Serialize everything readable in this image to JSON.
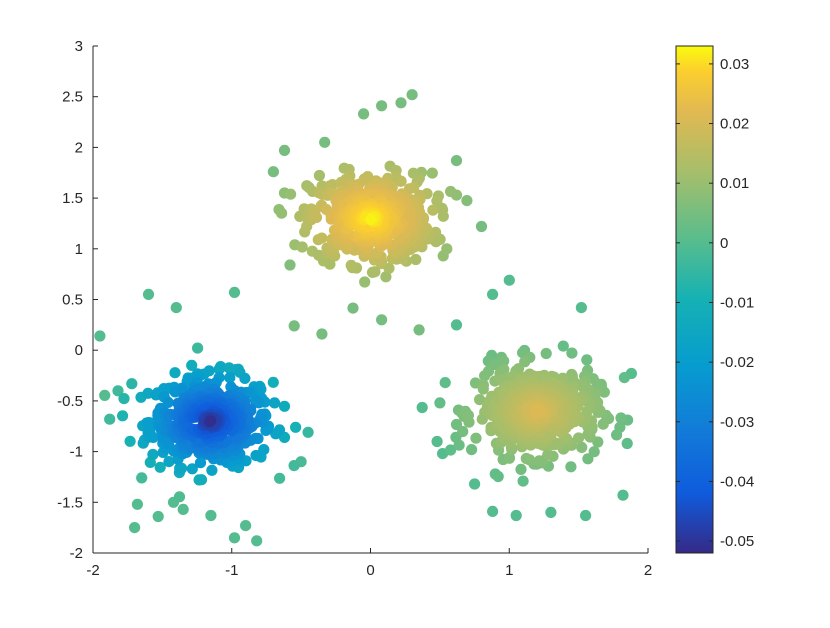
{
  "chart_data": {
    "type": "scatter",
    "title": "",
    "xlabel": "",
    "ylabel": "",
    "xlim": [
      -2,
      2
    ],
    "ylim": [
      -2,
      3
    ],
    "x_ticks": [
      -2,
      -1,
      0,
      1,
      2
    ],
    "x_tick_labels": [
      "-2",
      "-1",
      "0",
      "1",
      "2"
    ],
    "y_ticks": [
      -2,
      -1.5,
      -1,
      -0.5,
      0,
      0.5,
      1,
      1.5,
      2,
      2.5,
      3
    ],
    "y_tick_labels": [
      "-2",
      "-1.5",
      "-1",
      "-0.5",
      "0",
      "0.5",
      "1",
      "1.5",
      "2",
      "2.5",
      "3"
    ],
    "grid": false,
    "colorbar": {
      "colormap": "parula",
      "range": [
        -0.052,
        0.033
      ],
      "ticks": [
        -0.05,
        -0.04,
        -0.03,
        -0.02,
        -0.01,
        0,
        0.01,
        0.02,
        0.03
      ],
      "tick_labels": [
        "-0.05",
        "-0.04",
        "-0.03",
        "-0.02",
        "-0.01",
        "0",
        "0.01",
        "0.02",
        "0.03"
      ]
    },
    "clusters": [
      {
        "center": [
          -1.15,
          -0.7
        ],
        "spread": 0.22,
        "approx_points": 500,
        "color_value_range": [
          -0.052,
          0.0
        ],
        "points": [
          [
            -1.6,
            0.55
          ],
          [
            -1.4,
            0.42
          ],
          [
            -1.95,
            0.14
          ],
          [
            -0.98,
            0.57
          ],
          [
            -1.82,
            -0.4
          ],
          [
            -1.88,
            -0.68
          ],
          [
            -1.72,
            -0.33
          ],
          [
            -0.45,
            -0.81
          ],
          [
            -0.5,
            -1.1
          ],
          [
            -0.62,
            -0.86
          ],
          [
            -1.42,
            -1.5
          ],
          [
            -1.68,
            -1.52
          ],
          [
            -1.7,
            -1.75
          ],
          [
            -1.53,
            -1.64
          ],
          [
            -0.98,
            -1.85
          ],
          [
            -0.82,
            -1.88
          ],
          [
            -1.15,
            -1.63
          ],
          [
            -0.9,
            -1.73
          ],
          [
            -1.35,
            -1.57
          ]
        ]
      },
      {
        "center": [
          0.0,
          1.3
        ],
        "spread": 0.22,
        "approx_points": 500,
        "color_value_range": [
          0.005,
          0.033
        ],
        "points": [
          [
            0.3,
            2.52
          ],
          [
            0.22,
            2.44
          ],
          [
            0.08,
            2.41
          ],
          [
            -0.05,
            2.33
          ],
          [
            -0.33,
            2.05
          ],
          [
            -0.62,
            1.97
          ],
          [
            -0.7,
            1.76
          ],
          [
            -0.62,
            1.55
          ],
          [
            -0.58,
            0.84
          ],
          [
            -0.55,
            0.24
          ],
          [
            -0.35,
            0.16
          ],
          [
            0.35,
            0.2
          ],
          [
            0.08,
            0.3
          ],
          [
            0.62,
            1.87
          ],
          [
            0.62,
            1.53
          ],
          [
            0.8,
            1.22
          ],
          [
            0.55,
            1.0
          ]
        ]
      },
      {
        "center": [
          1.2,
          -0.6
        ],
        "spread": 0.22,
        "approx_points": 500,
        "color_value_range": [
          0.0,
          0.022
        ],
        "points": [
          [
            1.0,
            0.69
          ],
          [
            0.88,
            0.55
          ],
          [
            1.52,
            0.42
          ],
          [
            0.62,
            0.25
          ],
          [
            1.83,
            -0.27
          ],
          [
            1.88,
            -0.23
          ],
          [
            0.5,
            -0.52
          ],
          [
            0.48,
            -0.9
          ],
          [
            0.52,
            -1.02
          ],
          [
            0.75,
            -1.32
          ],
          [
            0.88,
            -1.59
          ],
          [
            1.05,
            -1.63
          ],
          [
            1.3,
            -1.6
          ],
          [
            1.55,
            -1.63
          ],
          [
            1.82,
            -1.43
          ],
          [
            1.85,
            -0.92
          ]
        ]
      }
    ]
  }
}
